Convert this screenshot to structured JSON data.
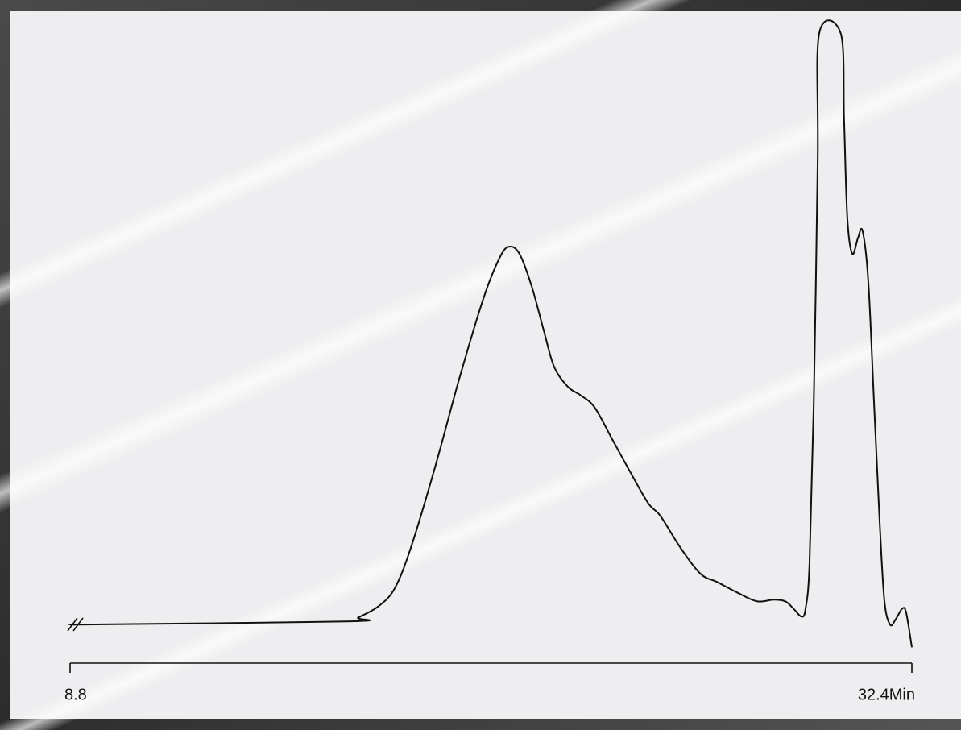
{
  "chart_data": {
    "type": "line",
    "x": [
      8.8,
      16.55,
      16.88,
      17.45,
      17.9,
      18.35,
      19.03,
      19.71,
      20.39,
      20.84,
      21.11,
      21.4,
      21.74,
      22.08,
      22.37,
      22.76,
      23.1,
      23.5,
      24.0,
      24.56,
      25.02,
      25.35,
      25.92,
      26.48,
      26.94,
      27.5,
      28.06,
      28.52,
      28.85,
      29.08,
      29.31,
      29.42,
      29.53,
      29.65,
      29.76,
      29.8,
      30.41,
      30.5,
      30.59,
      30.73,
      30.89,
      31.02,
      31.18,
      31.34,
      31.5,
      31.63,
      31.79,
      31.95,
      32.13,
      32.24,
      32.4
    ],
    "values": [
      0,
      0.55,
      1.23,
      3.14,
      6.14,
      12.96,
      26.6,
      41.6,
      55.25,
      62.07,
      63.98,
      62.76,
      57.3,
      49.8,
      43.66,
      40.25,
      38.88,
      36.83,
      31.38,
      25.24,
      20.46,
      18.42,
      12.96,
      8.59,
      7.23,
      5.46,
      3.96,
      4.23,
      3.96,
      2.73,
      1.36,
      2.73,
      10.23,
      37.52,
      78.44,
      100,
      100,
      85.27,
      68.89,
      62.76,
      65.48,
      66.58,
      57.98,
      37.52,
      17.05,
      4.09,
      0,
      0.95,
      2.73,
      2.05,
      -3.82
    ],
    "color": "#111111",
    "xlim": [
      8.8,
      32.4
    ],
    "xticks": [
      8.8,
      {
        "value": 32.4,
        "label": "32.4Min"
      }
    ],
    "ylim": [
      -5,
      100
    ]
  }
}
